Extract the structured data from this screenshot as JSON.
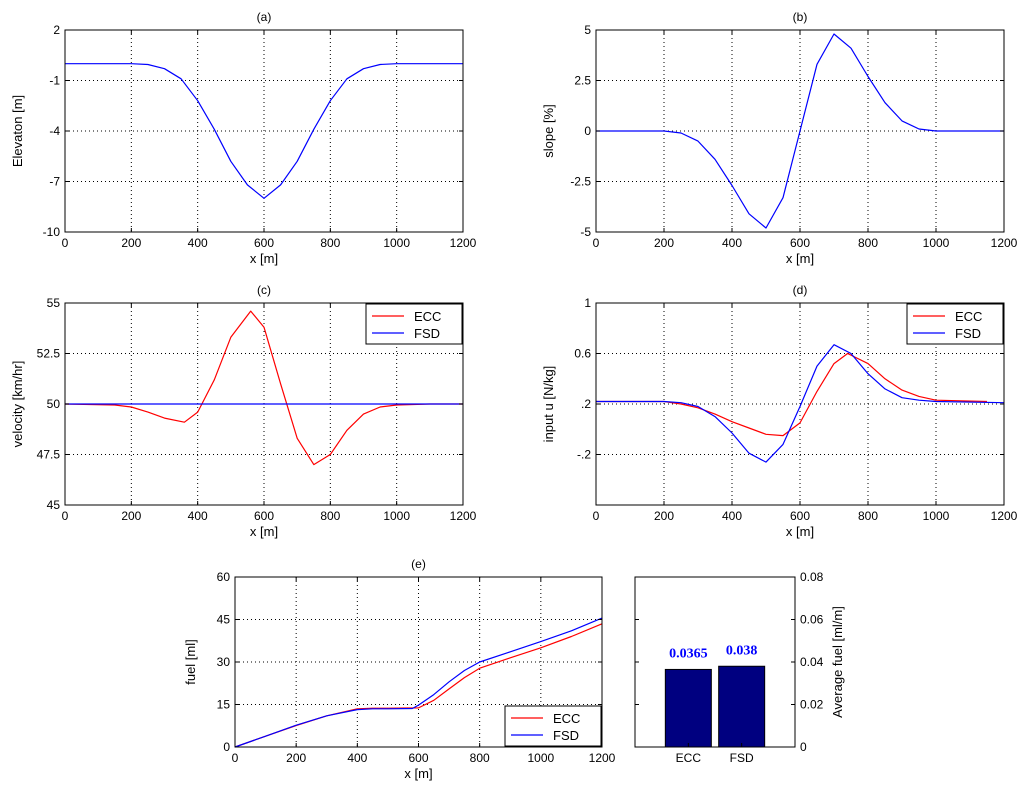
{
  "colors": {
    "ecc": "#ff0000",
    "fsd": "#0000ff",
    "bar": "#000080",
    "bar_label": "#0000ff",
    "axis": "#000000",
    "grid": "#000000"
  },
  "chart_data": [
    {
      "id": "a",
      "type": "line",
      "title": "(a)",
      "xlabel": "x [m]",
      "ylabel": "Elevaton [m]",
      "xlim": [
        0,
        1200
      ],
      "ylim": [
        -10,
        2
      ],
      "xticks": [
        0,
        200,
        400,
        600,
        800,
        1000,
        1200
      ],
      "xtick_labels": [
        "0",
        "200",
        "400",
        "600",
        "800",
        "1000",
        "1200"
      ],
      "yticks": [
        -10,
        -7,
        -4,
        -1,
        2
      ],
      "ytick_labels": [
        "-10",
        "-7",
        "-4",
        "-1",
        "2"
      ],
      "grid": true,
      "legend": null,
      "x": [
        0,
        200,
        250,
        300,
        350,
        400,
        450,
        500,
        550,
        600,
        650,
        700,
        750,
        800,
        850,
        900,
        950,
        1000,
        1200
      ],
      "series": [
        {
          "color": "fsd",
          "y": [
            0,
            0,
            -0.05,
            -0.3,
            -0.9,
            -2.2,
            -3.9,
            -5.8,
            -7.2,
            -8.0,
            -7.2,
            -5.8,
            -3.9,
            -2.2,
            -0.9,
            -0.3,
            -0.05,
            0,
            0
          ]
        }
      ]
    },
    {
      "id": "b",
      "type": "line",
      "title": "(b)",
      "xlabel": "x [m]",
      "ylabel": "slope [%]",
      "xlim": [
        0,
        1200
      ],
      "ylim": [
        -5,
        5
      ],
      "xticks": [
        0,
        200,
        400,
        600,
        800,
        1000,
        1200
      ],
      "xtick_labels": [
        "0",
        "200",
        "400",
        "600",
        "800",
        "1000",
        "1200"
      ],
      "yticks": [
        -5,
        -2.5,
        0,
        2.5,
        5
      ],
      "ytick_labels": [
        "-5",
        "-2.5",
        "0",
        "2.5",
        "5"
      ],
      "grid": true,
      "legend": null,
      "x": [
        0,
        200,
        250,
        300,
        350,
        400,
        450,
        500,
        550,
        600,
        650,
        700,
        750,
        800,
        850,
        900,
        950,
        1000,
        1200
      ],
      "series": [
        {
          "color": "fsd",
          "y": [
            0,
            0,
            -0.1,
            -0.5,
            -1.4,
            -2.7,
            -4.1,
            -4.8,
            -3.3,
            0,
            3.3,
            4.8,
            4.1,
            2.7,
            1.4,
            0.5,
            0.1,
            0,
            0
          ]
        }
      ]
    },
    {
      "id": "c",
      "type": "line",
      "title": "(c)",
      "xlabel": "x [m]",
      "ylabel": "velocity [km/hr]",
      "xlim": [
        0,
        1200
      ],
      "ylim": [
        45,
        55
      ],
      "xticks": [
        0,
        200,
        400,
        600,
        800,
        1000,
        1200
      ],
      "xtick_labels": [
        "0",
        "200",
        "400",
        "600",
        "800",
        "1000",
        "1200"
      ],
      "yticks": [
        45,
        47.5,
        50,
        52.5,
        55
      ],
      "ytick_labels": [
        "45",
        "47.5",
        "50",
        "52.5",
        "55"
      ],
      "grid": true,
      "legend": "top-right",
      "x": [
        0,
        150,
        200,
        250,
        300,
        360,
        400,
        450,
        500,
        560,
        600,
        650,
        700,
        750,
        800,
        850,
        900,
        950,
        1000,
        1100,
        1200
      ],
      "series": [
        {
          "name": "ECC",
          "color": "ecc",
          "y": [
            50,
            49.95,
            49.85,
            49.6,
            49.3,
            49.1,
            49.6,
            51.2,
            53.3,
            54.6,
            53.8,
            51.0,
            48.3,
            47.0,
            47.5,
            48.7,
            49.5,
            49.85,
            49.95,
            50,
            50
          ]
        },
        {
          "name": "FSD",
          "color": "fsd",
          "y": [
            50,
            50,
            50,
            50,
            50,
            50,
            50,
            50,
            50,
            50,
            50,
            50,
            50,
            50,
            50,
            50,
            50,
            50,
            50,
            50,
            50
          ]
        }
      ]
    },
    {
      "id": "d",
      "type": "line",
      "title": "(d)",
      "xlabel": "x [m]",
      "ylabel": "input u [N/kg]",
      "xlim": [
        0,
        1200
      ],
      "ylim": [
        -0.6,
        1
      ],
      "xticks": [
        0,
        200,
        400,
        600,
        800,
        1000,
        1200
      ],
      "xtick_labels": [
        "0",
        "200",
        "400",
        "600",
        "800",
        "1000",
        "1200"
      ],
      "yticks": [
        -0.2,
        0.2,
        0.6,
        1
      ],
      "ytick_labels": [
        "-.2",
        ".2",
        "0.6",
        "1"
      ],
      "grid": true,
      "legend": "top-right",
      "series": [
        {
          "name": "ECC",
          "color": "ecc",
          "x": [
            0,
            200,
            250,
            300,
            350,
            400,
            450,
            500,
            550,
            600,
            650,
            700,
            740,
            800,
            850,
            900,
            950,
            1000,
            1150
          ],
          "y": [
            0.22,
            0.22,
            0.2,
            0.17,
            0.12,
            0.06,
            0.01,
            -0.04,
            -0.05,
            0.05,
            0.3,
            0.52,
            0.6,
            0.52,
            0.4,
            0.31,
            0.26,
            0.23,
            0.22
          ]
        },
        {
          "name": "FSD",
          "color": "fsd",
          "x": [
            0,
            200,
            250,
            300,
            350,
            400,
            450,
            500,
            550,
            600,
            650,
            700,
            750,
            800,
            850,
            900,
            950,
            1000,
            1200
          ],
          "y": [
            0.22,
            0.22,
            0.21,
            0.18,
            0.1,
            -0.03,
            -0.19,
            -0.26,
            -0.12,
            0.18,
            0.5,
            0.67,
            0.6,
            0.44,
            0.32,
            0.25,
            0.23,
            0.22,
            0.21
          ]
        }
      ]
    },
    {
      "id": "e",
      "type": "line",
      "title": "(e)",
      "xlabel": "x [m]",
      "ylabel": "fuel [ml]",
      "xlim": [
        0,
        1200
      ],
      "ylim": [
        0,
        60
      ],
      "xticks": [
        0,
        200,
        400,
        600,
        800,
        1000,
        1200
      ],
      "xtick_labels": [
        "0",
        "200",
        "400",
        "600",
        "800",
        "1000",
        "1200"
      ],
      "yticks": [
        0,
        15,
        30,
        45,
        60
      ],
      "ytick_labels": [
        "0",
        "15",
        "30",
        "45",
        "60"
      ],
      "grid": true,
      "legend": "bottom-right",
      "series": [
        {
          "name": "ECC",
          "color": "ecc",
          "x": [
            0,
            100,
            200,
            300,
            400,
            450,
            500,
            600,
            650,
            700,
            750,
            800,
            900,
            1000,
            1100,
            1200
          ],
          "y": [
            0,
            3.8,
            7.6,
            11.0,
            13.5,
            13.7,
            13.7,
            13.8,
            16.5,
            20.5,
            24.5,
            27.8,
            31.5,
            35.0,
            39.0,
            43.5
          ]
        },
        {
          "name": "FSD",
          "color": "fsd",
          "x": [
            0,
            100,
            200,
            300,
            400,
            450,
            500,
            580,
            600,
            650,
            700,
            750,
            800,
            900,
            1000,
            1100,
            1200
          ],
          "y": [
            0,
            3.8,
            7.7,
            11.0,
            13.2,
            13.5,
            13.5,
            13.6,
            14.8,
            18.5,
            23.0,
            27.0,
            30.0,
            33.6,
            37.2,
            41.0,
            45.5
          ]
        }
      ]
    },
    {
      "id": "f",
      "type": "bar",
      "title": "",
      "xlabel": "",
      "ylabel": "Average fuel [ml/m]",
      "categories": [
        "ECC",
        "FSD"
      ],
      "values": [
        0.0365,
        0.038
      ],
      "value_labels": [
        "0.0365",
        "0.038"
      ],
      "ylim": [
        0,
        0.08
      ],
      "yticks": [
        0,
        0.02,
        0.04,
        0.06,
        0.08
      ],
      "ytick_labels": [
        "0",
        "0.02",
        "0.04",
        "0.06",
        "0.08"
      ],
      "y_axis_side": "right",
      "grid": false,
      "legend": null
    }
  ]
}
